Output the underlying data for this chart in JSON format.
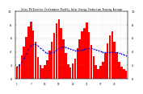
{
  "title": "Solar PV/Inverter Performance Monthly Solar Energy Production Running Average",
  "bar_values": [
    1.8,
    2.2,
    3.5,
    4.8,
    6.2,
    7.8,
    8.5,
    7.2,
    5.5,
    3.2,
    2.0,
    1.6,
    2.1,
    2.8,
    4.2,
    5.5,
    6.8,
    8.2,
    8.8,
    7.5,
    5.8,
    3.8,
    2.2,
    1.7,
    2.3,
    3.0,
    4.5,
    5.8,
    7.0,
    7.5,
    8.3,
    6.9,
    5.0,
    3.4,
    2.0,
    1.4,
    1.9,
    2.5,
    3.8,
    5.2,
    6.5,
    7.0,
    5.5,
    4.0,
    2.5,
    1.8,
    1.5,
    1.2
  ],
  "avg_values": [
    1.8,
    2.0,
    2.5,
    3.1,
    3.7,
    4.4,
    4.9,
    5.1,
    5.1,
    4.9,
    4.6,
    4.3,
    4.0,
    3.8,
    3.8,
    3.9,
    4.0,
    4.3,
    4.5,
    4.7,
    4.8,
    4.7,
    4.6,
    4.4,
    4.3,
    4.2,
    4.2,
    4.2,
    4.3,
    4.4,
    4.5,
    4.5,
    4.5,
    4.4,
    4.3,
    4.2,
    4.1,
    4.0,
    3.9,
    3.9,
    3.9,
    4.0,
    3.9,
    3.9,
    3.8,
    3.7,
    3.6,
    3.5
  ],
  "bar_color": "#FF0000",
  "avg_color": "#0000CC",
  "bg_color": "#FFFFFF",
  "grid_color": "#999999",
  "ylim": [
    0,
    10
  ],
  "yticks": [
    0,
    2,
    4,
    6,
    8,
    10
  ],
  "n_bars": 48,
  "tick_every": 6
}
